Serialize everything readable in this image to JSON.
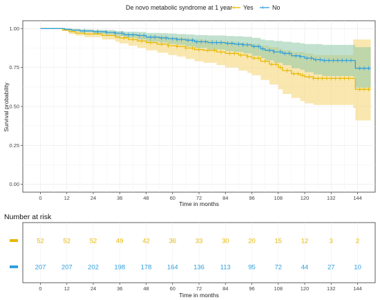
{
  "chart_data": [
    {
      "type": "line",
      "subtype": "kaplan-meier",
      "legend": {
        "title": "De novo metabolic syndrome at 1 year",
        "position": "top",
        "entries": [
          {
            "label": "Yes",
            "color": "#E7B800"
          },
          {
            "label": "No",
            "color": "#2E9FDF"
          }
        ]
      },
      "xlabel": "Time in months",
      "ylabel": "Survival probability",
      "xlim": [
        -8,
        152
      ],
      "ylim": [
        -0.05,
        1.05
      ],
      "x_ticks": [
        0,
        12,
        24,
        36,
        48,
        60,
        72,
        84,
        96,
        108,
        120,
        132,
        144
      ],
      "y_ticks": [
        0.0,
        0.25,
        0.5,
        0.75,
        1.0
      ],
      "y_tick_labels": [
        "0.00",
        "0.25",
        "0.50",
        "0.75",
        "1.00"
      ],
      "grid": true,
      "series": [
        {
          "name": "Yes",
          "color": "#E7B800",
          "band_color": "#F5D779",
          "steps": [
            [
              0,
              1.0
            ],
            [
              10,
              0.99
            ],
            [
              13,
              0.98
            ],
            [
              16,
              0.97
            ],
            [
              20,
              0.965
            ],
            [
              28,
              0.955
            ],
            [
              34,
              0.945
            ],
            [
              36,
              0.94
            ],
            [
              40,
              0.93
            ],
            [
              44,
              0.92
            ],
            [
              48,
              0.91
            ],
            [
              53,
              0.9
            ],
            [
              58,
              0.89
            ],
            [
              62,
              0.885
            ],
            [
              66,
              0.875
            ],
            [
              70,
              0.865
            ],
            [
              74,
              0.86
            ],
            [
              80,
              0.85
            ],
            [
              84,
              0.84
            ],
            [
              90,
              0.83
            ],
            [
              94,
              0.82
            ],
            [
              96,
              0.81
            ],
            [
              100,
              0.79
            ],
            [
              104,
              0.77
            ],
            [
              108,
              0.75
            ],
            [
              110,
              0.73
            ],
            [
              114,
              0.71
            ],
            [
              118,
              0.7
            ],
            [
              120,
              0.69
            ],
            [
              124,
              0.68
            ],
            [
              142,
              0.68
            ],
            [
              143,
              0.61
            ],
            [
              150,
              0.61
            ]
          ],
          "lower": [
            [
              0,
              1.0
            ],
            [
              10,
              0.985
            ],
            [
              13,
              0.965
            ],
            [
              16,
              0.955
            ],
            [
              20,
              0.945
            ],
            [
              28,
              0.93
            ],
            [
              34,
              0.915
            ],
            [
              36,
              0.905
            ],
            [
              40,
              0.89
            ],
            [
              44,
              0.875
            ],
            [
              48,
              0.86
            ],
            [
              53,
              0.845
            ],
            [
              58,
              0.83
            ],
            [
              62,
              0.82
            ],
            [
              66,
              0.805
            ],
            [
              70,
              0.79
            ],
            [
              74,
              0.78
            ],
            [
              80,
              0.765
            ],
            [
              84,
              0.75
            ],
            [
              90,
              0.73
            ],
            [
              94,
              0.715
            ],
            [
              96,
              0.7
            ],
            [
              100,
              0.67
            ],
            [
              104,
              0.64
            ],
            [
              108,
              0.61
            ],
            [
              110,
              0.58
            ],
            [
              114,
              0.555
            ],
            [
              118,
              0.535
            ],
            [
              120,
              0.52
            ],
            [
              124,
              0.51
            ],
            [
              142,
              0.49
            ],
            [
              143,
              0.41
            ],
            [
              150,
              0.41
            ]
          ],
          "upper": [
            [
              0,
              1.0
            ],
            [
              10,
              1.0
            ],
            [
              13,
              0.995
            ],
            [
              16,
              0.99
            ],
            [
              20,
              0.985
            ],
            [
              28,
              0.98
            ],
            [
              34,
              0.975
            ],
            [
              36,
              0.97
            ],
            [
              40,
              0.965
            ],
            [
              44,
              0.96
            ],
            [
              48,
              0.955
            ],
            [
              53,
              0.95
            ],
            [
              58,
              0.945
            ],
            [
              62,
              0.94
            ],
            [
              66,
              0.935
            ],
            [
              70,
              0.93
            ],
            [
              74,
              0.925
            ],
            [
              80,
              0.92
            ],
            [
              84,
              0.915
            ],
            [
              90,
              0.91
            ],
            [
              94,
              0.905
            ],
            [
              96,
              0.9
            ],
            [
              100,
              0.89
            ],
            [
              104,
              0.88
            ],
            [
              108,
              0.87
            ],
            [
              110,
              0.86
            ],
            [
              114,
              0.85
            ],
            [
              118,
              0.85
            ],
            [
              120,
              0.84
            ],
            [
              124,
              0.83
            ],
            [
              142,
              0.93
            ],
            [
              143,
              0.93
            ],
            [
              150,
              0.93
            ]
          ],
          "censor_x": [
            38,
            42,
            46,
            50,
            55,
            58,
            62,
            66,
            69,
            72,
            76,
            79,
            82,
            86,
            88,
            91,
            94,
            97,
            99,
            102,
            105,
            107,
            109,
            112,
            115,
            117,
            119,
            122,
            124,
            126,
            128,
            130,
            132,
            134,
            136,
            138,
            140,
            145,
            147,
            149
          ]
        },
        {
          "name": "No",
          "color": "#2E9FDF",
          "band_color": "#8FC8A8",
          "steps": [
            [
              0,
              1.0
            ],
            [
              11,
              0.995
            ],
            [
              14,
              0.99
            ],
            [
              18,
              0.985
            ],
            [
              24,
              0.98
            ],
            [
              30,
              0.975
            ],
            [
              34,
              0.97
            ],
            [
              38,
              0.96
            ],
            [
              44,
              0.955
            ],
            [
              48,
              0.945
            ],
            [
              54,
              0.94
            ],
            [
              58,
              0.935
            ],
            [
              62,
              0.93
            ],
            [
              66,
              0.925
            ],
            [
              70,
              0.915
            ],
            [
              76,
              0.91
            ],
            [
              84,
              0.905
            ],
            [
              88,
              0.9
            ],
            [
              92,
              0.895
            ],
            [
              96,
              0.885
            ],
            [
              100,
              0.87
            ],
            [
              102,
              0.86
            ],
            [
              106,
              0.85
            ],
            [
              110,
              0.84
            ],
            [
              114,
              0.825
            ],
            [
              118,
              0.82
            ],
            [
              120,
              0.81
            ],
            [
              124,
              0.8
            ],
            [
              128,
              0.795
            ],
            [
              142,
              0.795
            ],
            [
              143,
              0.745
            ],
            [
              150,
              0.745
            ]
          ],
          "lower": [
            [
              0,
              1.0
            ],
            [
              11,
              0.985
            ],
            [
              14,
              0.98
            ],
            [
              18,
              0.975
            ],
            [
              24,
              0.965
            ],
            [
              30,
              0.96
            ],
            [
              34,
              0.95
            ],
            [
              38,
              0.94
            ],
            [
              44,
              0.93
            ],
            [
              48,
              0.915
            ],
            [
              54,
              0.91
            ],
            [
              58,
              0.9
            ],
            [
              62,
              0.895
            ],
            [
              66,
              0.885
            ],
            [
              70,
              0.875
            ],
            [
              76,
              0.865
            ],
            [
              84,
              0.855
            ],
            [
              88,
              0.85
            ],
            [
              92,
              0.84
            ],
            [
              96,
              0.825
            ],
            [
              100,
              0.81
            ],
            [
              102,
              0.795
            ],
            [
              106,
              0.78
            ],
            [
              110,
              0.765
            ],
            [
              114,
              0.745
            ],
            [
              118,
              0.735
            ],
            [
              120,
              0.72
            ],
            [
              124,
              0.705
            ],
            [
              128,
              0.695
            ],
            [
              142,
              0.69
            ],
            [
              143,
              0.62
            ],
            [
              150,
              0.62
            ]
          ],
          "upper": [
            [
              0,
              1.0
            ],
            [
              11,
              1.0
            ],
            [
              14,
              0.998
            ],
            [
              18,
              0.995
            ],
            [
              24,
              0.992
            ],
            [
              30,
              0.99
            ],
            [
              34,
              0.985
            ],
            [
              38,
              0.98
            ],
            [
              44,
              0.978
            ],
            [
              48,
              0.972
            ],
            [
              54,
              0.97
            ],
            [
              58,
              0.968
            ],
            [
              62,
              0.965
            ],
            [
              66,
              0.962
            ],
            [
              70,
              0.958
            ],
            [
              76,
              0.955
            ],
            [
              84,
              0.952
            ],
            [
              88,
              0.95
            ],
            [
              92,
              0.947
            ],
            [
              96,
              0.94
            ],
            [
              100,
              0.93
            ],
            [
              102,
              0.925
            ],
            [
              106,
              0.92
            ],
            [
              110,
              0.915
            ],
            [
              114,
              0.91
            ],
            [
              118,
              0.905
            ],
            [
              120,
              0.9
            ],
            [
              124,
              0.9
            ],
            [
              128,
              0.895
            ],
            [
              142,
              0.895
            ],
            [
              143,
              0.88
            ],
            [
              150,
              0.88
            ]
          ],
          "censor_x": [
            20,
            26,
            30,
            34,
            37,
            40,
            42,
            45,
            47,
            50,
            52,
            55,
            57,
            60,
            62,
            64,
            67,
            69,
            71,
            73,
            75,
            78,
            80,
            82,
            85,
            87,
            90,
            92,
            94,
            97,
            99,
            101,
            104,
            106,
            109,
            111,
            113,
            116,
            118,
            121,
            123,
            125,
            127,
            129,
            131,
            133,
            135,
            137,
            139,
            141,
            145,
            147,
            149
          ]
        }
      ]
    },
    {
      "type": "table",
      "title": "Number at risk",
      "xlabel": "Time in months",
      "x_ticks": [
        0,
        12,
        24,
        36,
        48,
        60,
        72,
        84,
        96,
        108,
        120,
        132,
        144
      ],
      "rows": [
        {
          "name": "Yes",
          "color": "#E7B800",
          "values": [
            "52",
            "52",
            "52",
            "49",
            "42",
            "36",
            "33",
            "30",
            "20",
            "15",
            "12",
            "3",
            "2"
          ]
        },
        {
          "name": "No",
          "color": "#2E9FDF",
          "values": [
            "207",
            "207",
            "202",
            "198",
            "178",
            "164",
            "136",
            "113",
            "95",
            "72",
            "44",
            "27",
            "10"
          ]
        }
      ]
    }
  ]
}
